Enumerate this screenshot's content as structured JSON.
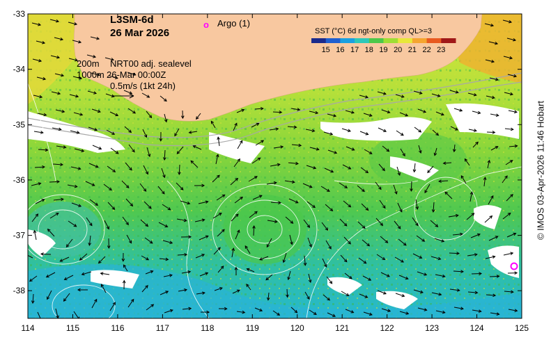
{
  "map": {
    "product": "L3SM-6d",
    "date": "26 Mar 2026",
    "argo_label": "Argo (1)",
    "argo_marker": "o",
    "legend_200": "200m",
    "legend_1000": "1000m",
    "sealevel_title": "NRT00 adj. sealevel",
    "sealevel_time": "26-Mar 00:00Z",
    "vector_scale": "0.5m/s (1kt 24h)",
    "sst_title": "SST (°C) 6d ngt-only comp QL>=3",
    "credit": "© IMOS 03-Apr-2026 11:46 Hobart",
    "colors": {
      "land": "#f8c8a0",
      "argo": "#ff00ff",
      "bathy": "#b0b0b0",
      "vector": "#000000"
    }
  },
  "colorbar": {
    "ticks": [
      "15",
      "16",
      "17",
      "18",
      "19",
      "20",
      "21",
      "22",
      "23"
    ],
    "colors": [
      "#1a2a8c",
      "#1f5fd0",
      "#1aa0e0",
      "#2dc8b8",
      "#4cc84a",
      "#9ede34",
      "#e8e83a",
      "#f5a530",
      "#e85a20",
      "#a01818"
    ]
  },
  "axes": {
    "x_ticks": [
      "114",
      "115",
      "116",
      "117",
      "118",
      "119",
      "120",
      "121",
      "122",
      "123",
      "124",
      "125"
    ],
    "y_ticks": [
      "-33",
      "-34",
      "-35",
      "-36",
      "-37",
      "-38"
    ],
    "xlim": [
      114,
      125
    ],
    "ylim": [
      -38.5,
      -33
    ]
  }
}
